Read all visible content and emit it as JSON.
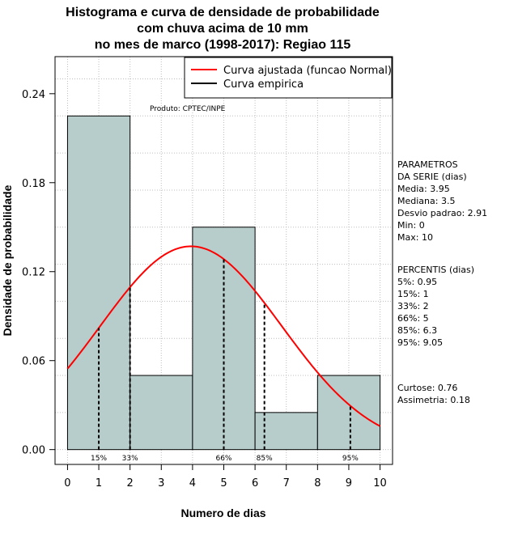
{
  "chart_data": {
    "type": "bar",
    "title_lines": [
      "Histograma e curva de densidade de probabilidade",
      "com chuva acima de 10 mm",
      "no mes de marco (1998-2017): Regiao 115"
    ],
    "xlabel": "Numero de dias",
    "ylabel": "Densidade de probabilidade",
    "xlim": [
      -0.4,
      10.4
    ],
    "ylim": [
      -0.01,
      0.265
    ],
    "x_ticks": [
      0,
      1,
      2,
      3,
      4,
      5,
      6,
      7,
      8,
      9,
      10
    ],
    "y_ticks": [
      0.0,
      0.06,
      0.12,
      0.18,
      0.24
    ],
    "y_tick_labels": [
      "0.00",
      "0.06",
      "0.12",
      "0.18",
      "0.24"
    ],
    "histogram_bins": [
      {
        "start": 0,
        "end": 2,
        "density": 0.225
      },
      {
        "start": 2,
        "end": 4,
        "density": 0.05
      },
      {
        "start": 4,
        "end": 6,
        "density": 0.15
      },
      {
        "start": 6,
        "end": 8,
        "density": 0.025
      },
      {
        "start": 8,
        "end": 10,
        "density": 0.05
      }
    ],
    "normal_fit": {
      "mean": 3.95,
      "sd": 2.91
    },
    "percentile_lines": [
      {
        "label": "15%",
        "x": 1
      },
      {
        "label": "33%",
        "x": 2
      },
      {
        "label": "66%",
        "x": 5
      },
      {
        "label": "85%",
        "x": 6.3
      },
      {
        "label": "95%",
        "x": 9.05
      }
    ],
    "legend": [
      {
        "label": "Curva ajustada (funcao Normal)",
        "color": "#ff0000"
      },
      {
        "label": "Curva empirica",
        "color": "#000000"
      }
    ],
    "annotation": "Produto: CPTEC/INPE",
    "colors": {
      "bar_fill": "#b7cdcc",
      "fit_curve": "#ff0000",
      "grid": "#bdbdbd"
    }
  },
  "side_panel": {
    "parametros_lines": [
      "PARAMETROS",
      "DA SERIE (dias)",
      "  Media: 3.95",
      "  Mediana: 3.5",
      "  Desvio padrao: 2.91",
      "  Min: 0",
      "  Max: 10"
    ],
    "percentis_lines": [
      "PERCENTIS (dias)",
      "  5%: 0.95",
      "  15%: 1",
      "  33%: 2",
      "  66%: 5",
      "  85%: 6.3",
      "  95%: 9.05"
    ],
    "shape_lines": [
      "   Curtose: 0.76",
      "Assimetria: 0.18"
    ]
  }
}
